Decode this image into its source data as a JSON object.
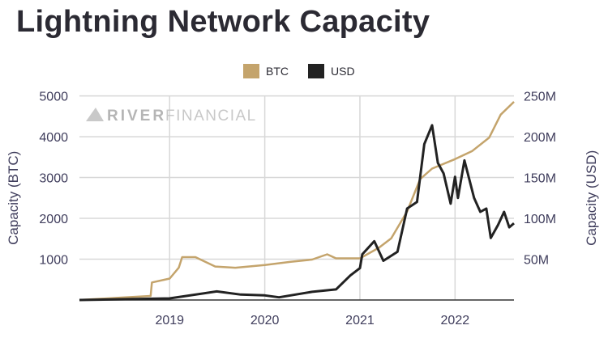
{
  "title": "Lightning Network Capacity",
  "watermark": {
    "bold": "RIVER",
    "light": "FINANCIAL"
  },
  "chart_data": {
    "type": "line",
    "title": "Lightning Network Capacity",
    "xlabel": "",
    "ylabel_left": "Capacity (BTC)",
    "ylabel_right": "Capacity (USD)",
    "xlim": [
      "2018-01-20",
      "2022-08-15"
    ],
    "ylim_left": [
      0,
      5000
    ],
    "ylim_right": [
      0,
      250000000
    ],
    "x_ticks": [
      "2019",
      "2020",
      "2021",
      "2022"
    ],
    "y_ticks_left": [
      "1000",
      "2000",
      "3000",
      "4000",
      "5000"
    ],
    "y_ticks_right": [
      "50M",
      "100M",
      "150M",
      "200M",
      "250M"
    ],
    "grid": true,
    "legend_position": "top",
    "series": [
      {
        "name": "BTC",
        "axis": "left",
        "color": "#c4a46c",
        "points": [
          [
            "2018-01-20",
            0
          ],
          [
            "2018-07-01",
            60
          ],
          [
            "2018-10-20",
            100
          ],
          [
            "2018-10-25",
            430
          ],
          [
            "2019-01-01",
            525
          ],
          [
            "2019-02-05",
            790
          ],
          [
            "2019-02-18",
            1050
          ],
          [
            "2019-04-10",
            1050
          ],
          [
            "2019-06-25",
            820
          ],
          [
            "2019-09-10",
            790
          ],
          [
            "2020-01-01",
            855
          ],
          [
            "2020-04-10",
            935
          ],
          [
            "2020-07-01",
            990
          ],
          [
            "2020-08-28",
            1120
          ],
          [
            "2020-10-01",
            1020
          ],
          [
            "2021-01-01",
            1020
          ],
          [
            "2021-03-15",
            1280
          ],
          [
            "2021-05-01",
            1510
          ],
          [
            "2021-07-01",
            2170
          ],
          [
            "2021-08-20",
            2960
          ],
          [
            "2021-10-05",
            3220
          ],
          [
            "2022-01-01",
            3450
          ],
          [
            "2022-03-08",
            3650
          ],
          [
            "2022-05-12",
            3980
          ],
          [
            "2022-06-25",
            4540
          ],
          [
            "2022-08-15",
            4855
          ]
        ]
      },
      {
        "name": "USD",
        "axis": "right",
        "color": "#222222",
        "points": [
          [
            "2018-01-20",
            0
          ],
          [
            "2019-01-01",
            2000000
          ],
          [
            "2019-07-01",
            10500000
          ],
          [
            "2019-10-01",
            6600000
          ],
          [
            "2020-01-01",
            5600000
          ],
          [
            "2020-02-25",
            3300000
          ],
          [
            "2020-07-01",
            10000000
          ],
          [
            "2020-10-01",
            13000000
          ],
          [
            "2020-11-25",
            30000000
          ],
          [
            "2021-01-01",
            39000000
          ],
          [
            "2021-01-10",
            56000000
          ],
          [
            "2021-02-25",
            72000000
          ],
          [
            "2021-04-01",
            48000000
          ],
          [
            "2021-05-25",
            59000000
          ],
          [
            "2021-07-01",
            112000000
          ],
          [
            "2021-08-08",
            120000000
          ],
          [
            "2021-09-05",
            191000000
          ],
          [
            "2021-10-05",
            214000000
          ],
          [
            "2021-10-27",
            168000000
          ],
          [
            "2021-11-18",
            155000000
          ],
          [
            "2021-12-15",
            118000000
          ],
          [
            "2022-01-01",
            151000000
          ],
          [
            "2022-01-12",
            125000000
          ],
          [
            "2022-02-06",
            171000000
          ],
          [
            "2022-03-15",
            125000000
          ],
          [
            "2022-04-08",
            108000000
          ],
          [
            "2022-05-01",
            112000000
          ],
          [
            "2022-05-18",
            76000000
          ],
          [
            "2022-06-15",
            92000000
          ],
          [
            "2022-07-08",
            108000000
          ],
          [
            "2022-07-28",
            89000000
          ],
          [
            "2022-08-15",
            94000000
          ]
        ]
      }
    ]
  }
}
